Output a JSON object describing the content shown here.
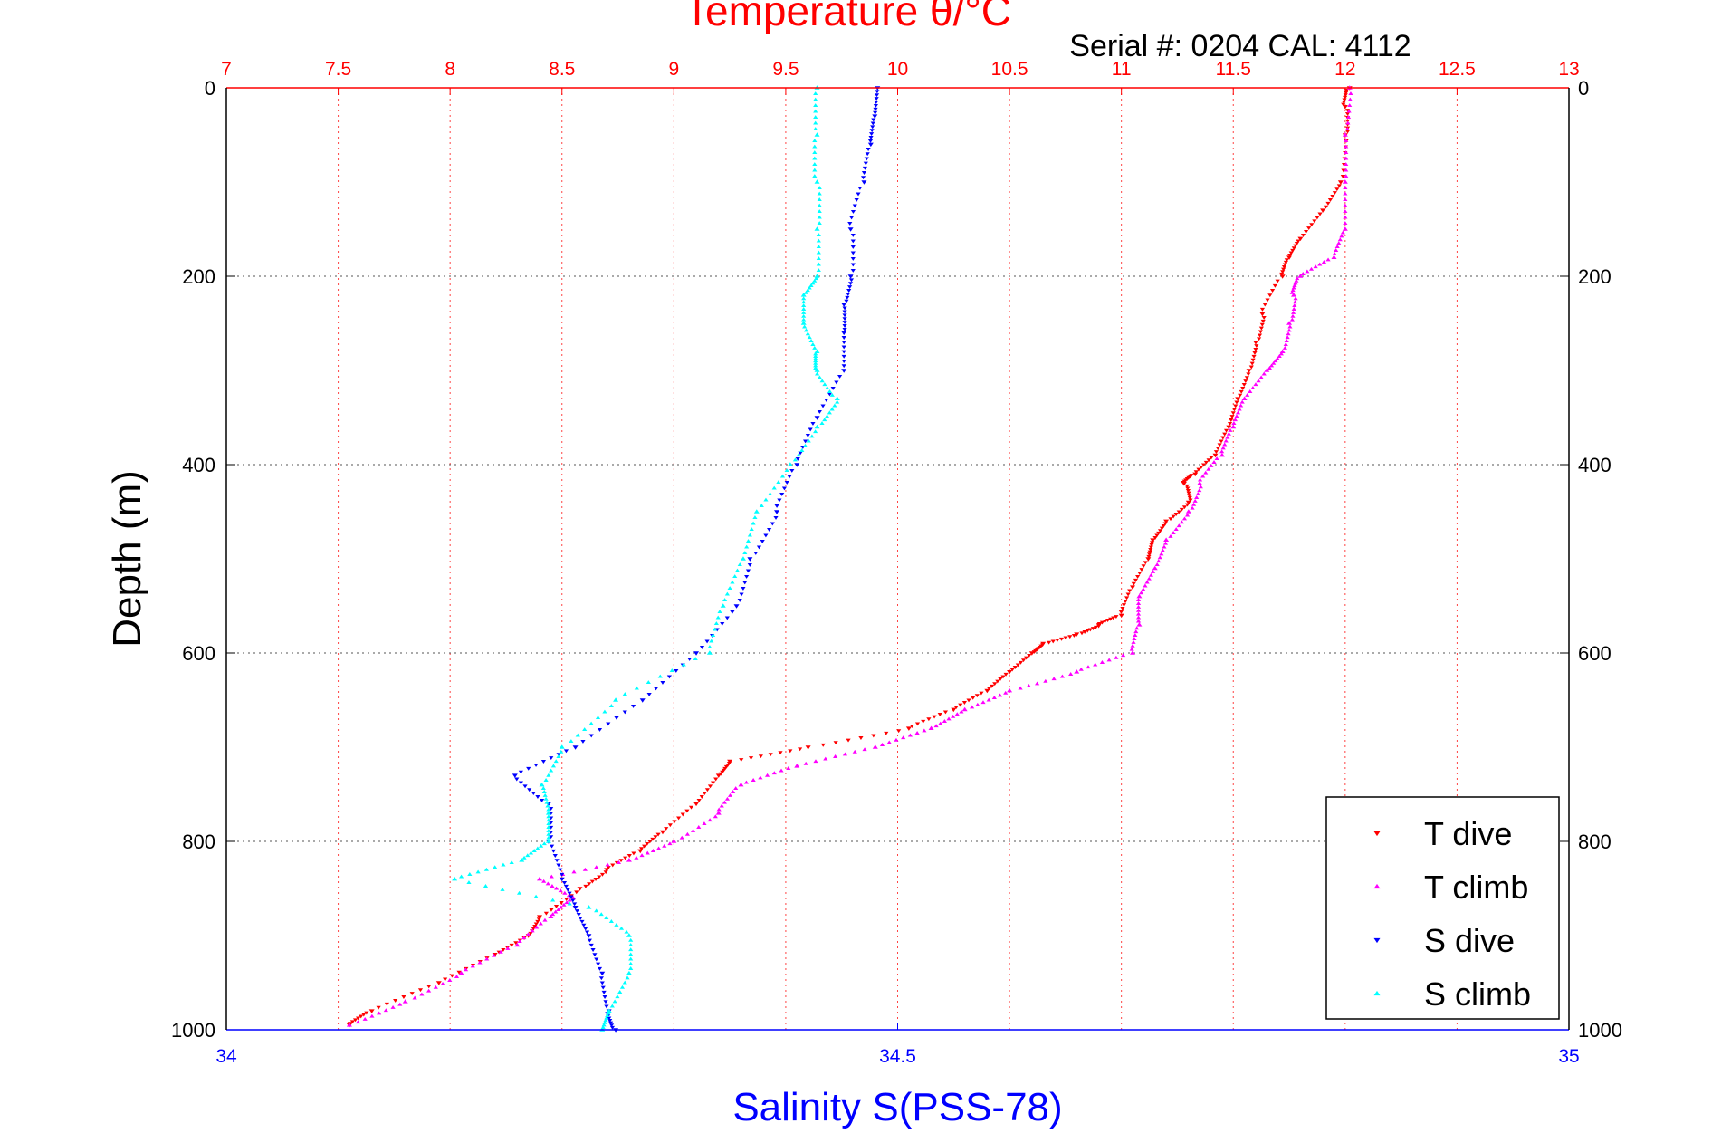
{
  "chart_data": {
    "type": "scatter",
    "title": "Temperature θ/°C",
    "subtitle": "Serial #: 0204  CAL: 4112",
    "ylabel": "Depth (m)",
    "xlabel": "Salinity S(PSS-78)",
    "x_top": {
      "label": "Temperature θ/°C",
      "ticks": [
        7,
        7.5,
        8,
        8.5,
        9,
        9.5,
        10,
        10.5,
        11,
        11.5,
        12,
        12.5,
        13
      ],
      "range": [
        7,
        13
      ],
      "color": "#ff0000"
    },
    "x_bottom": {
      "label": "Salinity S(PSS-78)",
      "ticks": [
        34,
        34.5,
        35
      ],
      "range": [
        34,
        35
      ],
      "color": "#0000ff"
    },
    "y": {
      "ticks": [
        0,
        200,
        400,
        600,
        800,
        1000
      ],
      "range": [
        0,
        1000
      ],
      "reversed": true
    },
    "grid": true,
    "legend_position": "bottom-right",
    "series": [
      {
        "name": "T dive",
        "axis": "temperature",
        "color": "#ff0000",
        "marker": "triangle-down",
        "depth": [
          0,
          20,
          50,
          100,
          130,
          160,
          180,
          200,
          240,
          270,
          300,
          330,
          360,
          390,
          410,
          420,
          440,
          460,
          480,
          500,
          530,
          560,
          570,
          580,
          590,
          600,
          620,
          640,
          660,
          680,
          700,
          715,
          730,
          760,
          790,
          810,
          830,
          850,
          880,
          900,
          920,
          950,
          980,
          995
        ],
        "values": [
          12.02,
          12.0,
          12.0,
          11.98,
          11.9,
          11.8,
          11.75,
          11.72,
          11.63,
          11.6,
          11.57,
          11.52,
          11.48,
          11.42,
          11.33,
          11.28,
          11.3,
          11.2,
          11.14,
          11.12,
          11.05,
          11.0,
          10.9,
          10.8,
          10.65,
          10.6,
          10.5,
          10.4,
          10.25,
          10.05,
          9.6,
          9.25,
          9.2,
          9.1,
          8.95,
          8.85,
          8.7,
          8.58,
          8.4,
          8.35,
          8.2,
          7.95,
          7.65,
          7.55
        ]
      },
      {
        "name": "T climb",
        "axis": "temperature",
        "color": "#ff00ff",
        "marker": "triangle-up",
        "depth": [
          0,
          50,
          100,
          150,
          180,
          200,
          220,
          250,
          280,
          300,
          330,
          360,
          390,
          420,
          450,
          480,
          510,
          540,
          570,
          600,
          620,
          640,
          660,
          680,
          700,
          720,
          740,
          770,
          800,
          820,
          840,
          860,
          880,
          910,
          940,
          970,
          995
        ],
        "values": [
          12.02,
          12.0,
          12.0,
          12.0,
          11.95,
          11.8,
          11.77,
          11.75,
          11.72,
          11.65,
          11.55,
          11.5,
          11.45,
          11.35,
          11.3,
          11.2,
          11.15,
          11.08,
          11.08,
          11.05,
          10.8,
          10.5,
          10.3,
          10.15,
          9.9,
          9.55,
          9.3,
          9.2,
          9.0,
          8.8,
          8.4,
          8.55,
          8.45,
          8.3,
          8.05,
          7.8,
          7.55
        ]
      },
      {
        "name": "S dive",
        "axis": "salinity",
        "color": "#0000ff",
        "marker": "triangle-down",
        "depth": [
          0,
          30,
          60,
          100,
          150,
          200,
          230,
          260,
          300,
          350,
          400,
          450,
          500,
          550,
          600,
          650,
          700,
          730,
          760,
          800,
          840,
          870,
          900,
          940,
          980,
          1000
        ],
        "values": [
          34.485,
          34.483,
          34.48,
          34.475,
          34.465,
          34.465,
          34.46,
          34.46,
          34.46,
          34.44,
          34.425,
          34.41,
          34.39,
          34.38,
          34.35,
          34.31,
          34.26,
          34.215,
          34.24,
          34.24,
          34.25,
          34.26,
          34.27,
          34.28,
          34.285,
          34.29
        ]
      },
      {
        "name": "S climb",
        "axis": "salinity",
        "color": "#00ffff",
        "marker": "triangle-up",
        "depth": [
          0,
          50,
          100,
          150,
          200,
          220,
          250,
          280,
          300,
          330,
          360,
          400,
          450,
          500,
          550,
          600,
          650,
          700,
          740,
          770,
          800,
          820,
          840,
          870,
          900,
          940,
          980,
          1000
        ],
        "values": [
          34.44,
          34.44,
          34.44,
          34.44,
          34.44,
          34.43,
          34.43,
          34.44,
          34.44,
          34.455,
          34.44,
          34.42,
          34.395,
          34.385,
          34.37,
          34.36,
          34.29,
          34.25,
          34.235,
          34.24,
          34.24,
          34.22,
          34.17,
          34.27,
          34.3,
          34.3,
          34.285,
          34.28
        ]
      }
    ]
  }
}
